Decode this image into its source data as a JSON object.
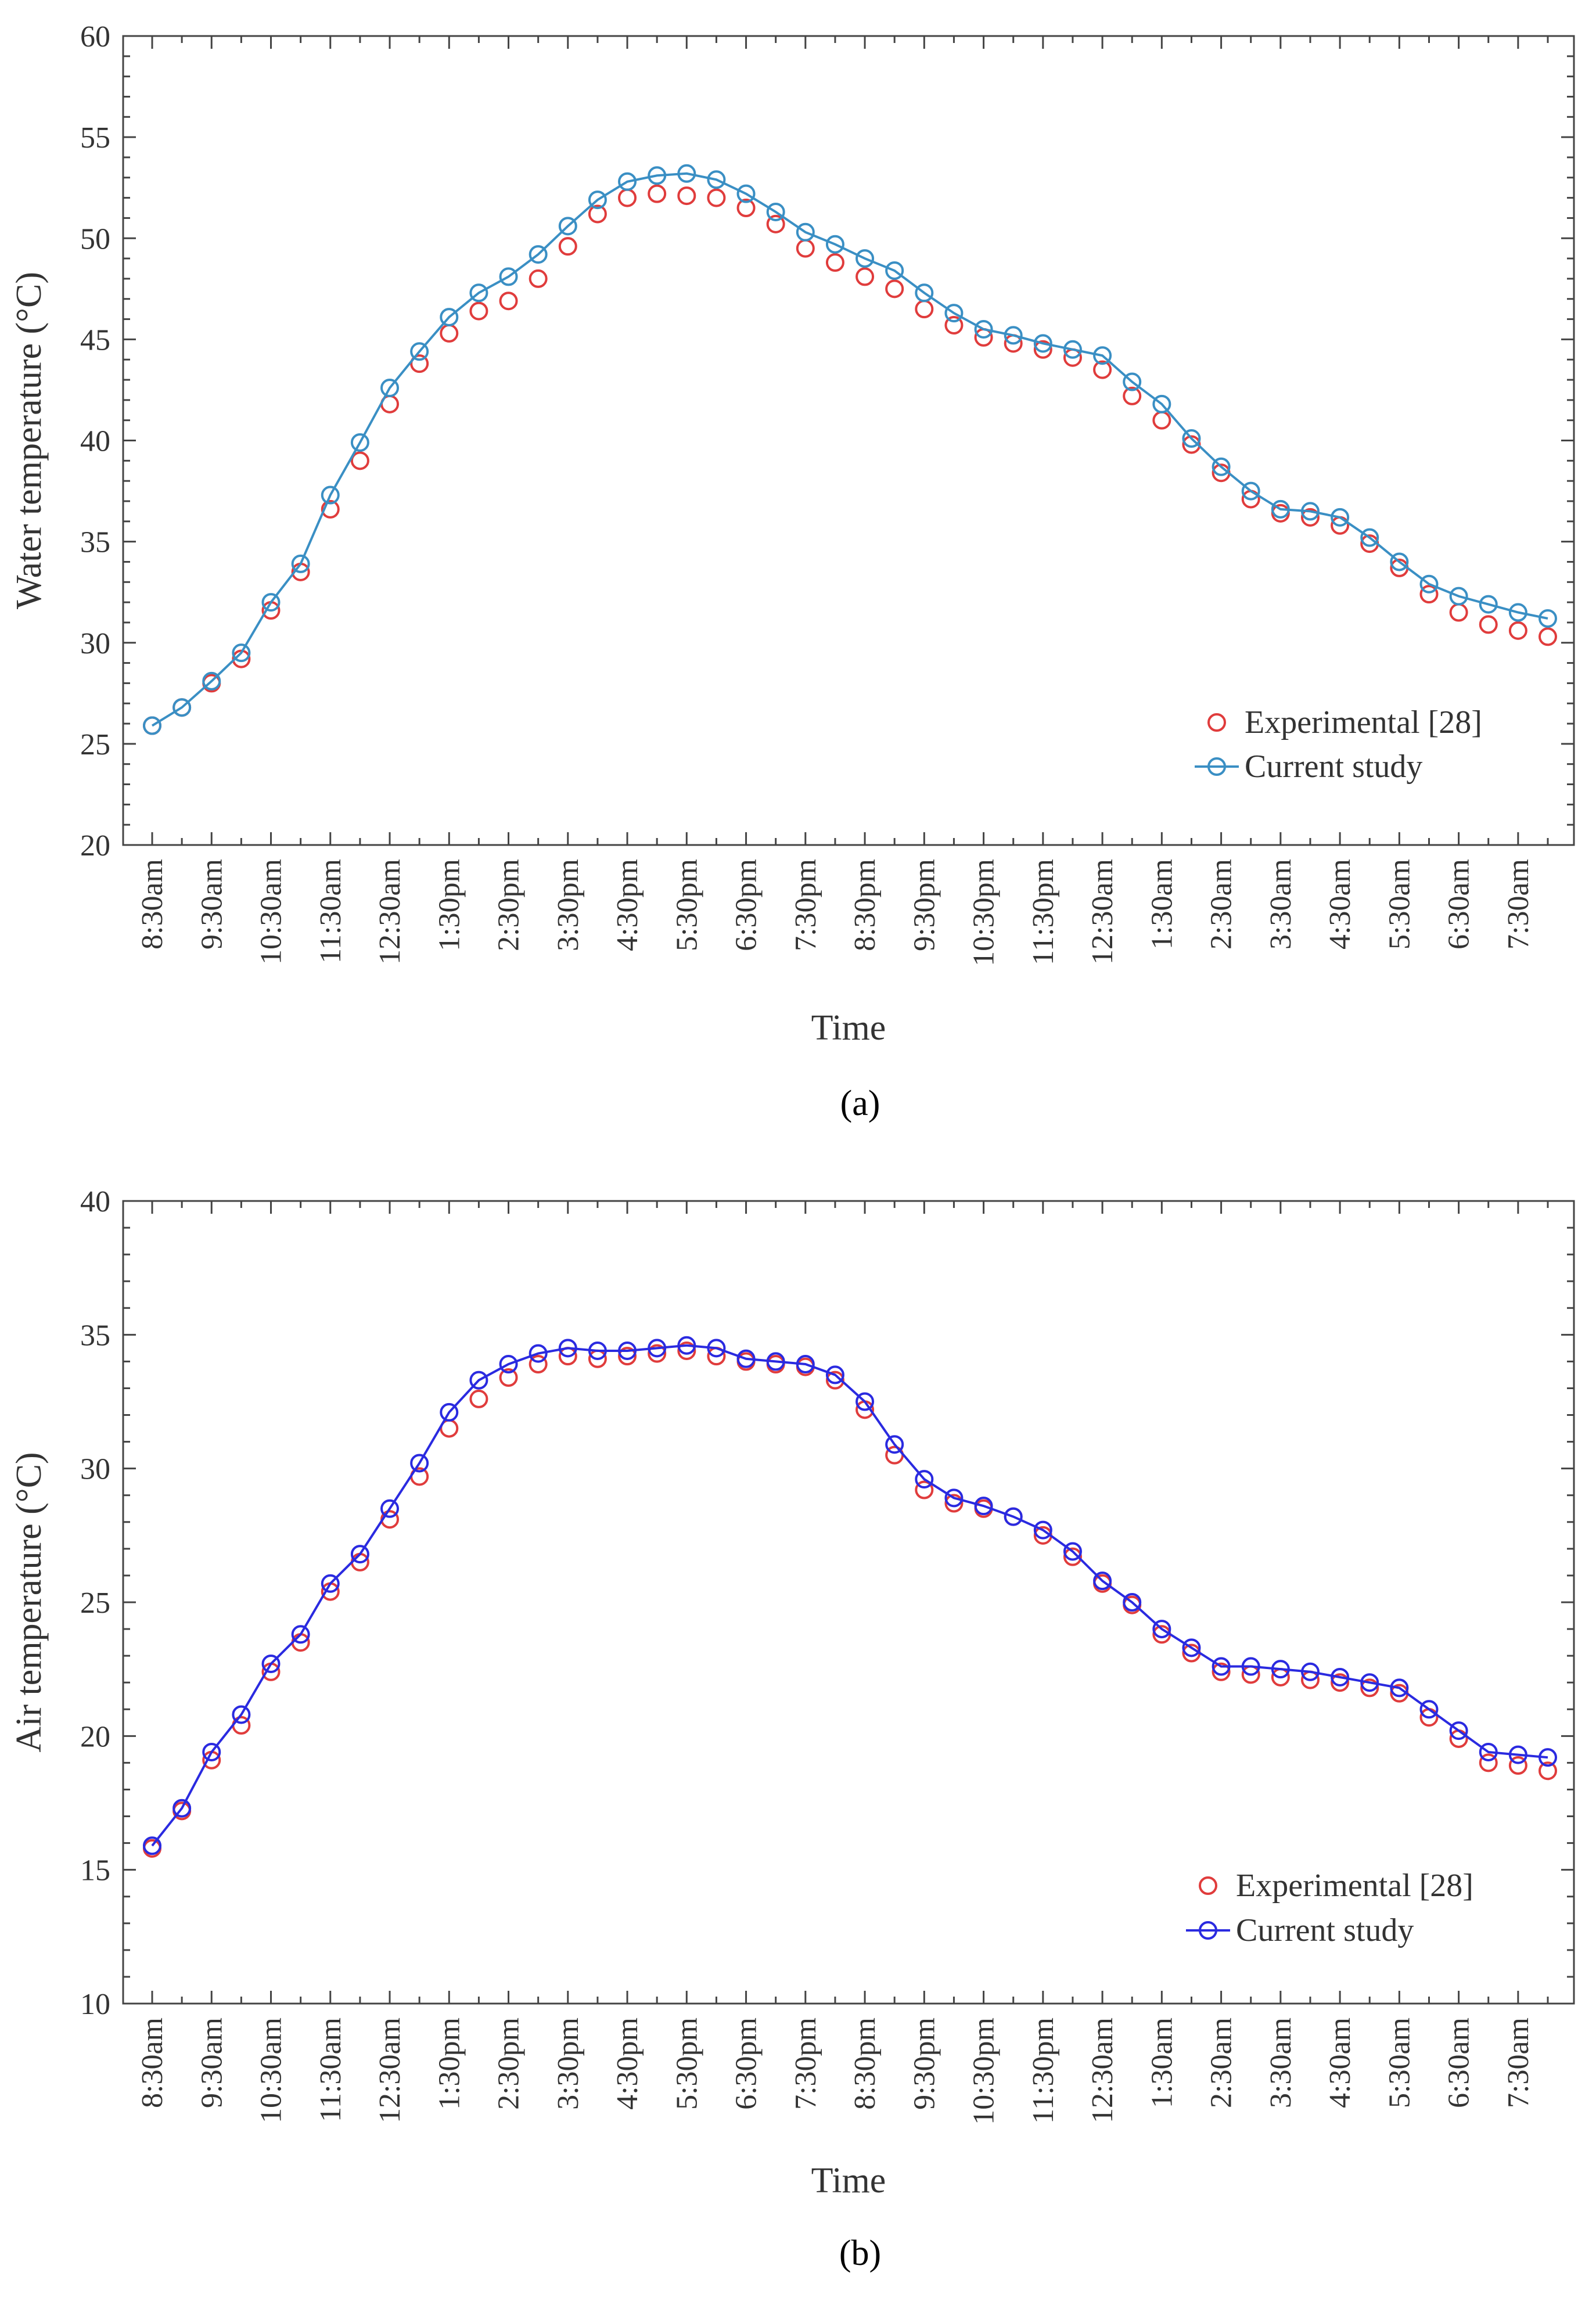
{
  "chart_data": [
    {
      "type": "line",
      "panel_label": "(a)",
      "xlabel": "Time",
      "ylabel": "Water temperature (°C)",
      "ylim": [
        20,
        60
      ],
      "yticks": [
        20,
        25,
        30,
        35,
        40,
        45,
        50,
        55,
        60
      ],
      "x_tick_labels": [
        "8:30am",
        "9:30am",
        "10:30am",
        "11:30am",
        "12:30am",
        "1:30pm",
        "2:30pm",
        "3:30pm",
        "4:30pm",
        "5:30pm",
        "6:30pm",
        "7:30pm",
        "8:30pm",
        "9:30pm",
        "10:30pm",
        "11:30pm",
        "12:30am",
        "1:30am",
        "2:30am",
        "3:30am",
        "4:30am",
        "5:30am",
        "6:30am",
        "7:30am"
      ],
      "legend_position": "bottom-right",
      "series": [
        {
          "name": "Experimental [28]",
          "style": "markers",
          "color": "#e03c3c",
          "values": [
            25.9,
            26.8,
            28.0,
            29.2,
            31.6,
            33.5,
            36.6,
            39.0,
            41.8,
            43.8,
            45.3,
            46.4,
            46.9,
            48.0,
            49.6,
            51.2,
            52.0,
            52.2,
            52.1,
            52.0,
            51.5,
            50.7,
            49.5,
            48.8,
            48.1,
            47.5,
            46.5,
            45.7,
            45.1,
            44.8,
            44.5,
            44.1,
            43.5,
            42.2,
            41.0,
            39.8,
            38.4,
            37.1,
            36.4,
            36.2,
            35.8,
            34.9,
            33.7,
            32.4,
            31.5,
            30.9,
            30.6,
            30.3
          ]
        },
        {
          "name": "Current study",
          "style": "line-markers",
          "color": "#3a8fc4",
          "values": [
            25.9,
            26.8,
            28.1,
            29.5,
            32.0,
            33.9,
            37.3,
            39.9,
            42.6,
            44.4,
            46.1,
            47.3,
            48.1,
            49.2,
            50.6,
            51.9,
            52.8,
            53.1,
            53.2,
            52.9,
            52.2,
            51.3,
            50.3,
            49.7,
            49.0,
            48.4,
            47.3,
            46.3,
            45.5,
            45.2,
            44.8,
            44.5,
            44.2,
            42.9,
            41.8,
            40.1,
            38.7,
            37.5,
            36.6,
            36.5,
            36.2,
            35.2,
            34.0,
            32.9,
            32.3,
            31.9,
            31.5,
            31.2
          ]
        }
      ]
    },
    {
      "type": "line",
      "panel_label": "(b)",
      "xlabel": "Time",
      "ylabel": "Air temperature (°C)",
      "ylim": [
        10,
        40
      ],
      "yticks": [
        10,
        15,
        20,
        25,
        30,
        35,
        40
      ],
      "x_tick_labels": [
        "8:30am",
        "9:30am",
        "10:30am",
        "11:30am",
        "12:30am",
        "1:30pm",
        "2:30pm",
        "3:30pm",
        "4:30pm",
        "5:30pm",
        "6:30pm",
        "7:30pm",
        "8:30pm",
        "9:30pm",
        "10:30pm",
        "11:30pm",
        "12:30am",
        "1:30am",
        "2:30am",
        "3:30am",
        "4:30am",
        "5:30am",
        "6:30am",
        "7:30am"
      ],
      "legend_position": "bottom-right",
      "series": [
        {
          "name": "Experimental [28]",
          "style": "markers",
          "color": "#e03c3c",
          "values": [
            15.8,
            17.2,
            19.1,
            20.4,
            22.4,
            23.5,
            25.4,
            26.5,
            28.1,
            29.7,
            31.5,
            32.6,
            33.4,
            33.9,
            34.2,
            34.1,
            34.2,
            34.3,
            34.4,
            34.2,
            34.0,
            33.9,
            33.8,
            33.3,
            32.2,
            30.5,
            29.2,
            28.7,
            28.5,
            28.2,
            27.5,
            26.7,
            25.7,
            24.9,
            23.8,
            23.1,
            22.4,
            22.3,
            22.2,
            22.1,
            22.0,
            21.8,
            21.6,
            20.7,
            19.9,
            19.0,
            18.9,
            18.7
          ]
        },
        {
          "name": "Current study",
          "style": "line-markers",
          "color": "#2a2ae0",
          "values": [
            15.9,
            17.3,
            19.4,
            20.8,
            22.7,
            23.8,
            25.7,
            26.8,
            28.5,
            30.2,
            32.1,
            33.3,
            33.9,
            34.3,
            34.5,
            34.4,
            34.4,
            34.5,
            34.6,
            34.5,
            34.1,
            34.0,
            33.9,
            33.5,
            32.5,
            30.9,
            29.6,
            28.9,
            28.6,
            28.2,
            27.7,
            26.9,
            25.8,
            25.0,
            24.0,
            23.3,
            22.6,
            22.6,
            22.5,
            22.4,
            22.2,
            22.0,
            21.8,
            21.0,
            20.2,
            19.4,
            19.3,
            19.2
          ]
        }
      ]
    }
  ]
}
